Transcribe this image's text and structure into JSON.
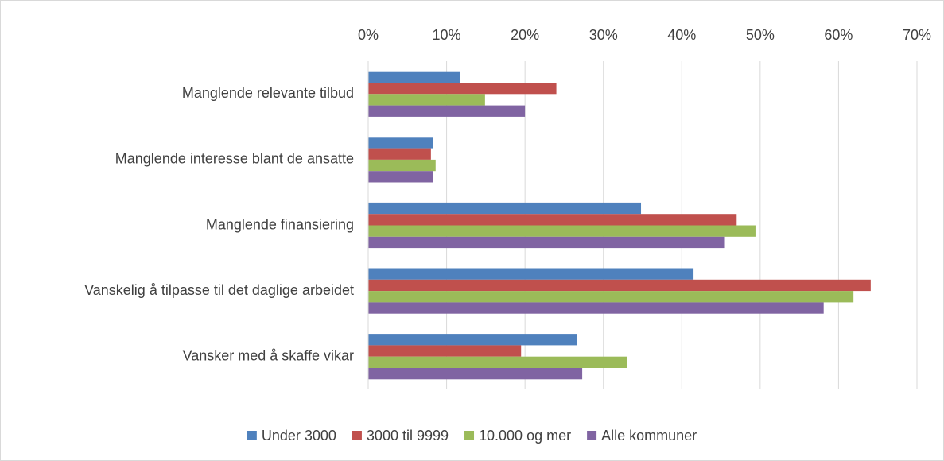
{
  "chart_data": {
    "type": "bar",
    "orientation": "horizontal",
    "categories": [
      "Manglende relevante tilbud",
      "Manglende interesse blant de ansatte",
      "Manglende finansiering",
      "Vanskelig å tilpasse til det daglige arbeidet",
      "Vansker med å skaffe vikar"
    ],
    "series": [
      {
        "name": "Under 3000",
        "color": "#4f81bd",
        "values": [
          11.7,
          8.3,
          34.8,
          41.5,
          26.6
        ]
      },
      {
        "name": "3000 til 9999",
        "color": "#c0504d",
        "values": [
          24.0,
          8.0,
          47.0,
          64.1,
          19.5
        ]
      },
      {
        "name": "10.000 og mer",
        "color": "#9bbb59",
        "values": [
          14.9,
          8.6,
          49.4,
          61.9,
          33.0
        ]
      },
      {
        "name": "Alle kommuner",
        "color": "#8064a2",
        "values": [
          20.0,
          8.3,
          45.4,
          58.1,
          27.3
        ]
      }
    ],
    "xlim": [
      0,
      70
    ],
    "xticks": [
      {
        "value": 0,
        "label": "0%"
      },
      {
        "value": 10,
        "label": "10%"
      },
      {
        "value": 20,
        "label": "20%"
      },
      {
        "value": 30,
        "label": "30%"
      },
      {
        "value": 40,
        "label": "40%"
      },
      {
        "value": 50,
        "label": "50%"
      },
      {
        "value": 60,
        "label": "60%"
      },
      {
        "value": 70,
        "label": "70%"
      }
    ],
    "grid": true,
    "legend": "bottom"
  }
}
